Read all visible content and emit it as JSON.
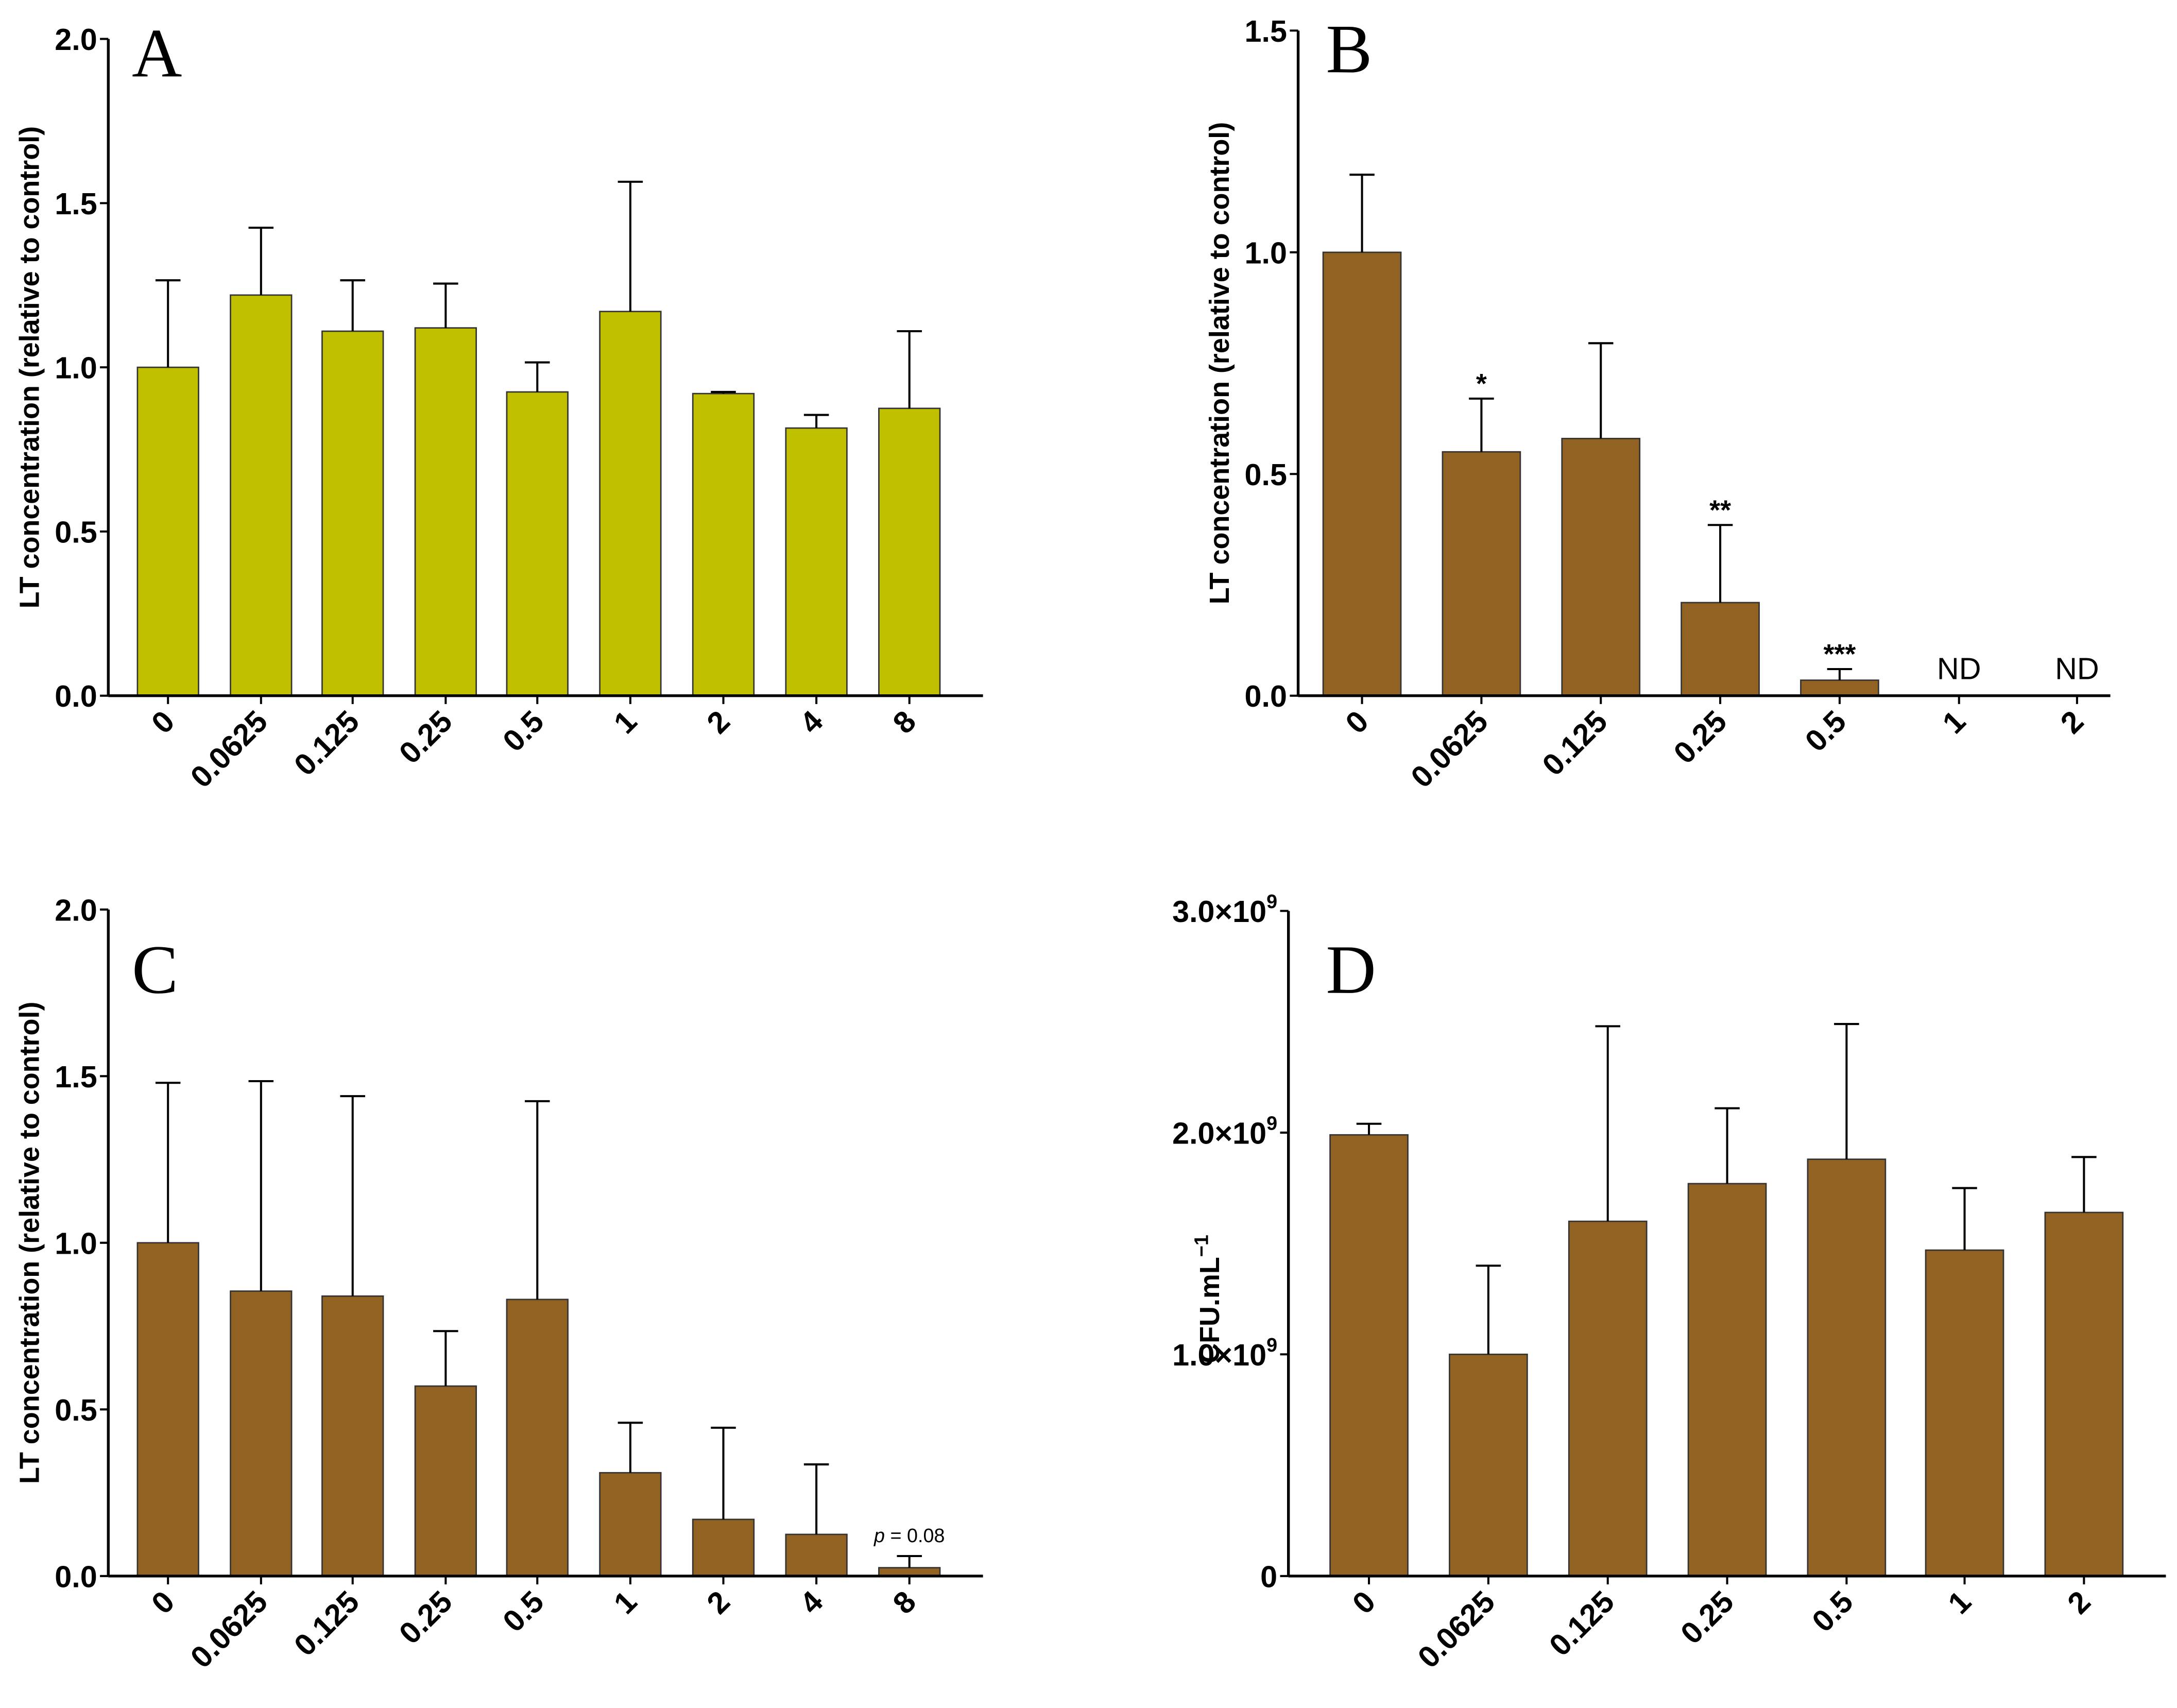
{
  "chart_data": [
    {
      "panel": "A",
      "type": "bar",
      "ylabel": "LT concentration (relative to control)",
      "categories": [
        "0",
        "0.0625",
        "0.125",
        "0.25",
        "0.5",
        "1",
        "2",
        "4",
        "8"
      ],
      "values": [
        1.0,
        1.22,
        1.11,
        1.12,
        0.925,
        1.17,
        0.92,
        0.815,
        0.875
      ],
      "error_upper": [
        1.265,
        1.425,
        1.265,
        1.255,
        1.015,
        1.565,
        0.925,
        0.855,
        1.11
      ],
      "ylim": [
        0,
        2.0
      ],
      "yticks": [
        {
          "v": 0,
          "label": "0.0"
        },
        {
          "v": 0.5,
          "label": "0.5"
        },
        {
          "v": 1.0,
          "label": "1.0"
        },
        {
          "v": 1.5,
          "label": "1.5"
        },
        {
          "v": 2.0,
          "label": "2.0"
        }
      ],
      "annotations": [
        "",
        "",
        "",
        "",
        "",
        "",
        "",
        "",
        ""
      ],
      "color": "#c0c000"
    },
    {
      "panel": "B",
      "type": "bar",
      "ylabel": "LT concentration (relative to control)",
      "categories": [
        "0",
        "0.0625",
        "0.125",
        "0.25",
        "0.5",
        "1",
        "2"
      ],
      "values": [
        1.0,
        0.55,
        0.58,
        0.21,
        0.035,
        0,
        0
      ],
      "error_upper": [
        1.175,
        0.67,
        0.795,
        0.385,
        0.06,
        null,
        null
      ],
      "ylim": [
        0,
        1.5
      ],
      "yticks": [
        {
          "v": 0,
          "label": "0.0"
        },
        {
          "v": 0.5,
          "label": "0.5"
        },
        {
          "v": 1.0,
          "label": "1.0"
        },
        {
          "v": 1.5,
          "label": "1.5"
        }
      ],
      "annotations": [
        "",
        "*",
        "",
        "**",
        "***",
        "ND",
        "ND"
      ],
      "color": "#926222"
    },
    {
      "panel": "C",
      "type": "bar",
      "ylabel": "LT concentration (relative to control)",
      "categories": [
        "0",
        "0.0625",
        "0.125",
        "0.25",
        "0.5",
        "1",
        "2",
        "4",
        "8"
      ],
      "values": [
        1.0,
        0.855,
        0.84,
        0.57,
        0.83,
        0.31,
        0.17,
        0.125,
        0.025
      ],
      "error_upper": [
        1.48,
        1.485,
        1.44,
        0.735,
        1.425,
        0.46,
        0.445,
        0.335,
        0.06
      ],
      "ylim": [
        0,
        2.0
      ],
      "yticks": [
        {
          "v": 0,
          "label": "0.0"
        },
        {
          "v": 0.5,
          "label": "0.5"
        },
        {
          "v": 1.0,
          "label": "1.0"
        },
        {
          "v": 1.5,
          "label": "1.5"
        },
        {
          "v": 2.0,
          "label": "2.0"
        }
      ],
      "annotations": [
        "",
        "",
        "",
        "",
        "",
        "",
        "",
        "",
        "p = 0.08"
      ],
      "color": "#926222"
    },
    {
      "panel": "D",
      "type": "bar",
      "ylabel": "CFU.mL",
      "ylabel_sup": "−1",
      "categories": [
        "0",
        "0.0625",
        "0.125",
        "0.25",
        "0.5",
        "1",
        "2"
      ],
      "values": [
        1990000000.0,
        1000000000.0,
        1600000000.0,
        1770000000.0,
        1880000000.0,
        1470000000.0,
        1640000000.0
      ],
      "error_upper": [
        2040000000.0,
        1400000000.0,
        2480000000.0,
        2110000000.0,
        2490000000.0,
        1750000000.0,
        1890000000.0
      ],
      "ylim": [
        0,
        3000000000.0
      ],
      "yticks": [
        {
          "v": 0,
          "label": "0"
        },
        {
          "v": 1000000000.0,
          "label": "1.0×10",
          "sup": "9"
        },
        {
          "v": 2000000000.0,
          "label": "2.0×10",
          "sup": "9"
        },
        {
          "v": 3000000000.0,
          "label": "3.0×10",
          "sup": "9"
        }
      ],
      "annotations": [
        "",
        "",
        "",
        "",
        "",
        "",
        ""
      ],
      "color": "#926222"
    }
  ]
}
